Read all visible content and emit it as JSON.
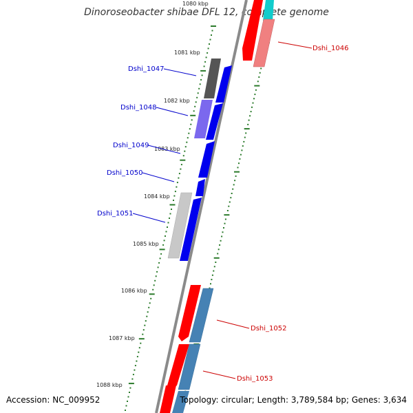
{
  "title": "Dinoroseobacter shibae DFL 12, complete genome",
  "accession_text": "Accession: NC_009952",
  "summary_text": "Topology: circular; Length: 3,789,584 bp; Genes: 3,634",
  "colors": {
    "backbone": "#8a8a8a",
    "tick": "#2a7a2a",
    "forward_gene": "#0000ee",
    "reverse_gene": "#ff0000",
    "reverse_light": "#f08080",
    "steelblue": "#4682b4",
    "cyan": "#11cccc",
    "gray_dark": "#555555",
    "gray_light": "#c8c8c8",
    "purple": "#7b68ee",
    "label_forward": "#0000cc",
    "label_reverse": "#cc0000"
  },
  "scale_labels": [
    "1080 kbp",
    "1081 kbp",
    "1082 kbp",
    "1083 kbp",
    "1084 kbp",
    "1085 kbp",
    "1086 kbp",
    "1087 kbp",
    "1088 kbp"
  ],
  "genes": [
    {
      "name": "Dshi_1046",
      "strand": "reverse"
    },
    {
      "name": "Dshi_1047",
      "strand": "forward"
    },
    {
      "name": "Dshi_1048",
      "strand": "forward"
    },
    {
      "name": "Dshi_1049",
      "strand": "forward"
    },
    {
      "name": "Dshi_1050",
      "strand": "forward"
    },
    {
      "name": "Dshi_1051",
      "strand": "forward"
    },
    {
      "name": "Dshi_1052",
      "strand": "reverse"
    },
    {
      "name": "Dshi_1053",
      "strand": "reverse"
    }
  ]
}
